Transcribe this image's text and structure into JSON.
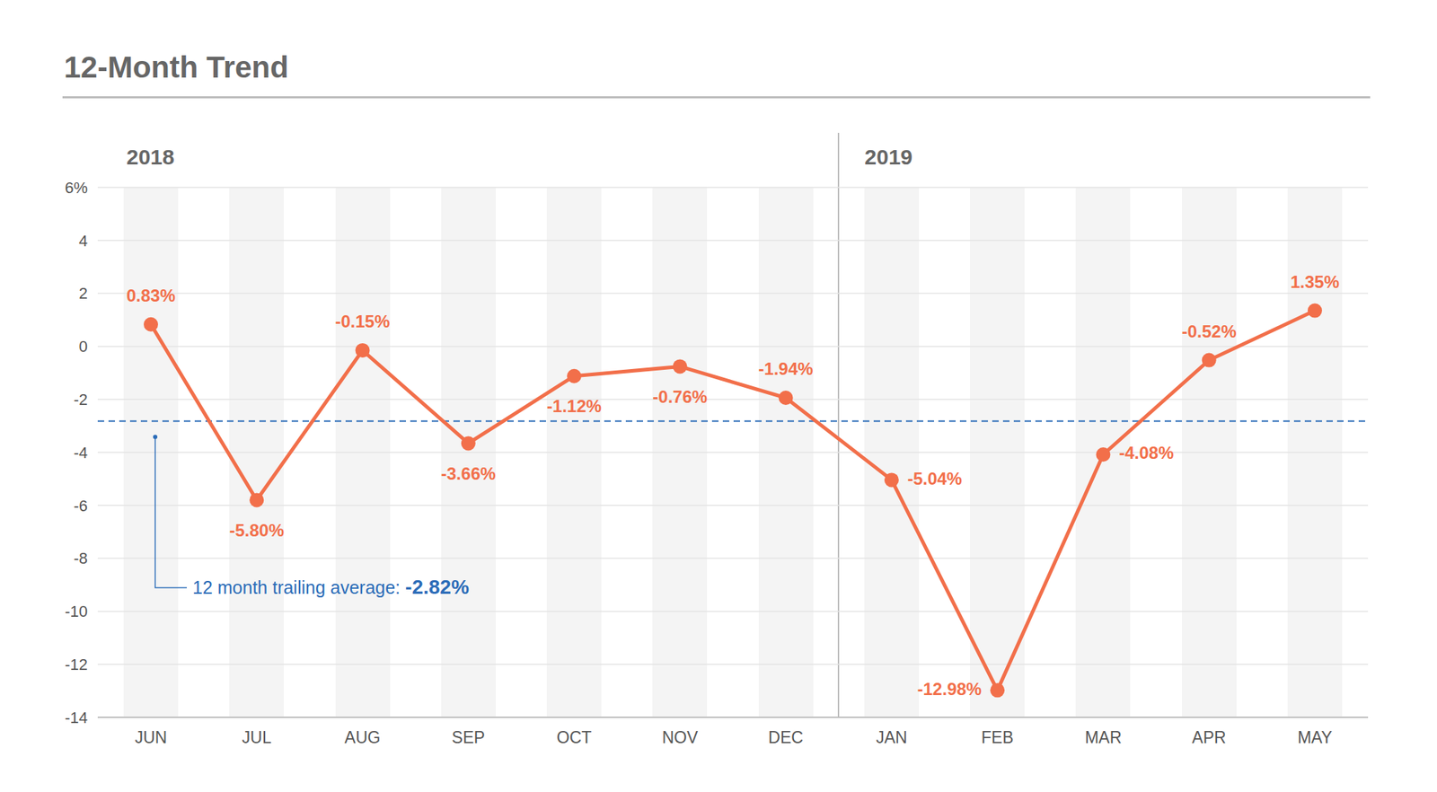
{
  "chart_data": {
    "type": "line",
    "title": "12-Month Trend",
    "categories": [
      "JUN",
      "JUL",
      "AUG",
      "SEP",
      "OCT",
      "NOV",
      "DEC",
      "JAN",
      "FEB",
      "MAR",
      "APR",
      "MAY"
    ],
    "values": [
      0.83,
      -5.8,
      -0.15,
      -3.66,
      -1.12,
      -0.76,
      -1.94,
      -5.04,
      -12.98,
      -4.08,
      -0.52,
      1.35
    ],
    "value_labels": [
      "0.83%",
      "-5.80%",
      "-0.15%",
      "-3.66%",
      "-1.12%",
      "-0.76%",
      "-1.94%",
      "-5.04%",
      "-12.98%",
      "-4.08%",
      "-0.52%",
      "1.35%"
    ],
    "color": "#f26f4a",
    "marker": "circle",
    "data_labels": true,
    "ylim": [
      -14,
      6
    ],
    "yticks": [
      -14,
      -12,
      -10,
      -8,
      -6,
      -4,
      -2,
      0,
      2,
      4,
      {
        "value": 6,
        "label": "6%"
      }
    ],
    "grid": true,
    "annotations": [
      {
        "text": "2018",
        "x": "JUN"
      },
      {
        "text": "2019",
        "x": "JAN"
      }
    ],
    "reference_lines": [
      {
        "y": -2.82,
        "label": "12 month trailing average:",
        "value_label": "-2.82%",
        "color": "#2b6cb8",
        "line_style": "dashed"
      }
    ]
  }
}
